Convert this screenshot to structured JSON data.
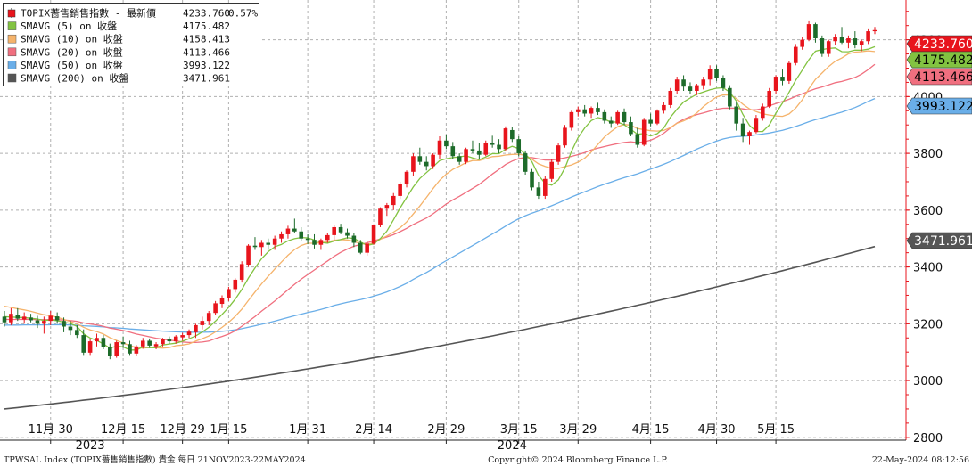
{
  "footer": {
    "left": "TPWSAL Index (TOPIX薔售銷售指數) 貴金  每日 21NOV2023-22MAY2024",
    "center": "Copyright© 2024 Bloomberg Finance L.P.",
    "right": "22-May-2024 08:12:56"
  },
  "legend": [
    {
      "label": "TOPIX薔售銷售指數 - 最新價",
      "value": "4233.760",
      "extra": "0.57%",
      "color": "#e8141c",
      "swatch": "candle-icon"
    },
    {
      "label": "SMAVG (5)  on 收盤",
      "value": "4175.482",
      "extra": "",
      "color": "#82c341",
      "swatch": "square-icon"
    },
    {
      "label": "SMAVG (10)  on 收盤",
      "value": "4158.413",
      "extra": "",
      "color": "#f5b36b",
      "swatch": "square-icon"
    },
    {
      "label": "SMAVG (20)  on 收盤",
      "value": "4113.466",
      "extra": "",
      "color": "#f06f7f",
      "swatch": "square-icon"
    },
    {
      "label": "SMAVG (50)  on 收盤",
      "value": "3993.122",
      "extra": "",
      "color": "#6aaee8",
      "swatch": "square-icon"
    },
    {
      "label": "SMAVG (200)  on 收盤",
      "value": "3471.961",
      "extra": "",
      "color": "#555555",
      "swatch": "square-icon"
    }
  ],
  "chart_data": {
    "type": "candlestick",
    "y_ticks": [
      "4200",
      "4000",
      "3800",
      "3600",
      "3400",
      "3200",
      "3000",
      "2800"
    ],
    "ylim": [
      2790,
      4340
    ],
    "grid": true,
    "legend_position": "top-left",
    "x_tick_labels": [
      "11月 30",
      "12月 15",
      "12月 29",
      "1月 15",
      "1月 31",
      "2月 14",
      "2月 29",
      "3月 15",
      "3月 29",
      "4月 15",
      "4月 30",
      "5月 15"
    ],
    "x_tick_index": [
      7,
      18,
      27,
      34,
      46,
      56,
      67,
      78,
      87,
      98,
      108,
      117
    ],
    "year_labels": [
      {
        "text": "2023",
        "index": 13
      },
      {
        "text": "2024",
        "index": 77
      }
    ],
    "dates_note": "daily bars 21NOV2023-22MAY2024",
    "ohlc": [
      [
        3225,
        3245,
        3190,
        3205
      ],
      [
        3205,
        3255,
        3195,
        3235
      ],
      [
        3232,
        3255,
        3210,
        3218
      ],
      [
        3215,
        3240,
        3200,
        3225
      ],
      [
        3222,
        3235,
        3205,
        3212
      ],
      [
        3212,
        3228,
        3185,
        3200
      ],
      [
        3200,
        3225,
        3165,
        3210
      ],
      [
        3210,
        3245,
        3195,
        3228
      ],
      [
        3226,
        3240,
        3200,
        3212
      ],
      [
        3210,
        3222,
        3170,
        3190
      ],
      [
        3190,
        3210,
        3160,
        3178
      ],
      [
        3178,
        3195,
        3150,
        3160
      ],
      [
        3160,
        3180,
        3090,
        3098
      ],
      [
        3098,
        3145,
        3090,
        3138
      ],
      [
        3138,
        3165,
        3120,
        3150
      ],
      [
        3150,
        3160,
        3110,
        3118
      ],
      [
        3118,
        3130,
        3075,
        3085
      ],
      [
        3085,
        3140,
        3080,
        3135
      ],
      [
        3135,
        3155,
        3115,
        3128
      ],
      [
        3128,
        3140,
        3090,
        3095
      ],
      [
        3095,
        3125,
        3085,
        3120
      ],
      [
        3120,
        3150,
        3112,
        3140
      ],
      [
        3140,
        3148,
        3115,
        3123
      ],
      [
        3120,
        3135,
        3110,
        3128
      ],
      [
        3128,
        3150,
        3120,
        3145
      ],
      [
        3145,
        3155,
        3130,
        3138
      ],
      [
        3138,
        3160,
        3130,
        3155
      ],
      [
        3152,
        3168,
        3140,
        3160
      ],
      [
        3160,
        3180,
        3150,
        3172
      ],
      [
        3170,
        3200,
        3150,
        3195
      ],
      [
        3195,
        3225,
        3180,
        3210
      ],
      [
        3210,
        3245,
        3195,
        3238
      ],
      [
        3238,
        3280,
        3230,
        3272
      ],
      [
        3270,
        3300,
        3255,
        3290
      ],
      [
        3290,
        3330,
        3280,
        3322
      ],
      [
        3322,
        3360,
        3310,
        3355
      ],
      [
        3355,
        3420,
        3345,
        3410
      ],
      [
        3408,
        3480,
        3400,
        3475
      ],
      [
        3475,
        3505,
        3460,
        3470
      ],
      [
        3470,
        3495,
        3440,
        3485
      ],
      [
        3485,
        3500,
        3460,
        3478
      ],
      [
        3478,
        3510,
        3460,
        3500
      ],
      [
        3500,
        3525,
        3485,
        3515
      ],
      [
        3515,
        3545,
        3500,
        3535
      ],
      [
        3535,
        3570,
        3520,
        3525
      ],
      [
        3525,
        3540,
        3490,
        3500
      ],
      [
        3500,
        3515,
        3480,
        3495
      ],
      [
        3495,
        3515,
        3465,
        3478
      ],
      [
        3478,
        3500,
        3460,
        3495
      ],
      [
        3495,
        3520,
        3485,
        3512
      ],
      [
        3512,
        3548,
        3495,
        3540
      ],
      [
        3540,
        3552,
        3515,
        3522
      ],
      [
        3522,
        3535,
        3500,
        3510
      ],
      [
        3510,
        3520,
        3470,
        3485
      ],
      [
        3485,
        3495,
        3445,
        3450
      ],
      [
        3450,
        3490,
        3440,
        3482
      ],
      [
        3482,
        3550,
        3478,
        3548
      ],
      [
        3548,
        3610,
        3540,
        3605
      ],
      [
        3605,
        3625,
        3580,
        3618
      ],
      [
        3618,
        3660,
        3600,
        3650
      ],
      [
        3650,
        3700,
        3640,
        3692
      ],
      [
        3692,
        3740,
        3680,
        3735
      ],
      [
        3735,
        3800,
        3720,
        3790
      ],
      [
        3790,
        3820,
        3760,
        3770
      ],
      [
        3770,
        3790,
        3740,
        3755
      ],
      [
        3755,
        3800,
        3745,
        3795
      ],
      [
        3795,
        3860,
        3780,
        3845
      ],
      [
        3845,
        3865,
        3815,
        3825
      ],
      [
        3825,
        3840,
        3780,
        3790
      ],
      [
        3790,
        3800,
        3760,
        3770
      ],
      [
        3770,
        3820,
        3762,
        3815
      ],
      [
        3815,
        3845,
        3800,
        3810
      ],
      [
        3810,
        3835,
        3780,
        3795
      ],
      [
        3795,
        3845,
        3790,
        3838
      ],
      [
        3838,
        3862,
        3820,
        3830
      ],
      [
        3830,
        3850,
        3800,
        3815
      ],
      [
        3815,
        3895,
        3810,
        3888
      ],
      [
        3882,
        3892,
        3840,
        3850
      ],
      [
        3850,
        3860,
        3790,
        3800
      ],
      [
        3800,
        3810,
        3725,
        3735
      ],
      [
        3735,
        3745,
        3670,
        3680
      ],
      [
        3680,
        3700,
        3640,
        3650
      ],
      [
        3650,
        3720,
        3640,
        3710
      ],
      [
        3710,
        3780,
        3700,
        3770
      ],
      [
        3770,
        3838,
        3760,
        3828
      ],
      [
        3828,
        3900,
        3820,
        3890
      ],
      [
        3890,
        3950,
        3880,
        3945
      ],
      [
        3945,
        3965,
        3930,
        3955
      ],
      [
        3955,
        3970,
        3930,
        3940
      ],
      [
        3940,
        3965,
        3925,
        3960
      ],
      [
        3960,
        3978,
        3935,
        3945
      ],
      [
        3945,
        3955,
        3905,
        3915
      ],
      [
        3915,
        3930,
        3890,
        3905
      ],
      [
        3905,
        3950,
        3900,
        3945
      ],
      [
        3945,
        3958,
        3900,
        3910
      ],
      [
        3910,
        3930,
        3860,
        3868
      ],
      [
        3868,
        3890,
        3820,
        3830
      ],
      [
        3830,
        3925,
        3825,
        3918
      ],
      [
        3918,
        3940,
        3895,
        3905
      ],
      [
        3905,
        3955,
        3900,
        3950
      ],
      [
        3950,
        3980,
        3940,
        3970
      ],
      [
        3970,
        4030,
        3960,
        4020
      ],
      [
        4020,
        4070,
        4010,
        4060
      ],
      [
        4060,
        4075,
        4020,
        4035
      ],
      [
        4035,
        4050,
        4010,
        4020
      ],
      [
        4020,
        4045,
        4005,
        4040
      ],
      [
        4040,
        4070,
        4025,
        4060
      ],
      [
        4060,
        4110,
        4040,
        4098
      ],
      [
        4098,
        4110,
        4055,
        4065
      ],
      [
        4065,
        4075,
        4020,
        4030
      ],
      [
        4030,
        4040,
        3955,
        3965
      ],
      [
        3965,
        3980,
        3880,
        3905
      ],
      [
        3905,
        3925,
        3840,
        3860
      ],
      [
        3860,
        3880,
        3830,
        3875
      ],
      [
        3875,
        3935,
        3870,
        3925
      ],
      [
        3925,
        3975,
        3915,
        3965
      ],
      [
        3965,
        4030,
        3960,
        4020
      ],
      [
        4020,
        4075,
        4010,
        4070
      ],
      [
        4070,
        4095,
        4040,
        4055
      ],
      [
        4055,
        4125,
        4045,
        4118
      ],
      [
        4118,
        4185,
        4110,
        4175
      ],
      [
        4175,
        4210,
        4165,
        4200
      ],
      [
        4200,
        4265,
        4195,
        4255
      ],
      [
        4255,
        4260,
        4190,
        4205
      ],
      [
        4205,
        4215,
        4140,
        4150
      ],
      [
        4150,
        4200,
        4140,
        4195
      ],
      [
        4195,
        4220,
        4180,
        4210
      ],
      [
        4210,
        4245,
        4185,
        4190
      ],
      [
        4190,
        4215,
        4170,
        4205
      ],
      [
        4205,
        4230,
        4170,
        4180
      ],
      [
        4180,
        4200,
        4160,
        4195
      ],
      [
        4195,
        4240,
        4185,
        4230
      ],
      [
        4230,
        4245,
        4220,
        4234
      ]
    ],
    "sma": [
      {
        "name": "SMAVG (5)",
        "color": "#82c341",
        "width": 1.3,
        "start": 3225,
        "end": 4175.482
      },
      {
        "name": "SMAVG (10)",
        "color": "#f5b36b",
        "width": 1.3,
        "start": 3262,
        "end": 4158.413
      },
      {
        "name": "SMAVG (20)",
        "color": "#f06f7f",
        "width": 1.3,
        "start": 3215,
        "end": 4113.466
      },
      {
        "name": "SMAVG (50)",
        "color": "#6aaee8",
        "width": 1.3,
        "start": 3195,
        "end": 3993.122
      },
      {
        "name": "SMAVG (200)",
        "color": "#555555",
        "width": 1.6,
        "start": 2900,
        "end": 3471.961
      }
    ],
    "right_tags": [
      {
        "text": "4233.760",
        "value": 4233.76,
        "bg": "#e8141c",
        "fg": "#ffffff"
      },
      {
        "text": "4175.482",
        "value": 4175.482,
        "bg": "#82c341",
        "fg": "#000000"
      },
      {
        "text": "4113.466",
        "value": 4113.466,
        "bg": "#f06f7f",
        "fg": "#000000"
      },
      {
        "text": "3993.122",
        "value": 3993.122,
        "bg": "#6aaee8",
        "fg": "#000000"
      },
      {
        "text": "3471.961",
        "value": 3471.961,
        "bg": "#555555",
        "fg": "#ffffff"
      }
    ],
    "up_color": "#e8141c",
    "down_color": "#1d6b2a"
  }
}
